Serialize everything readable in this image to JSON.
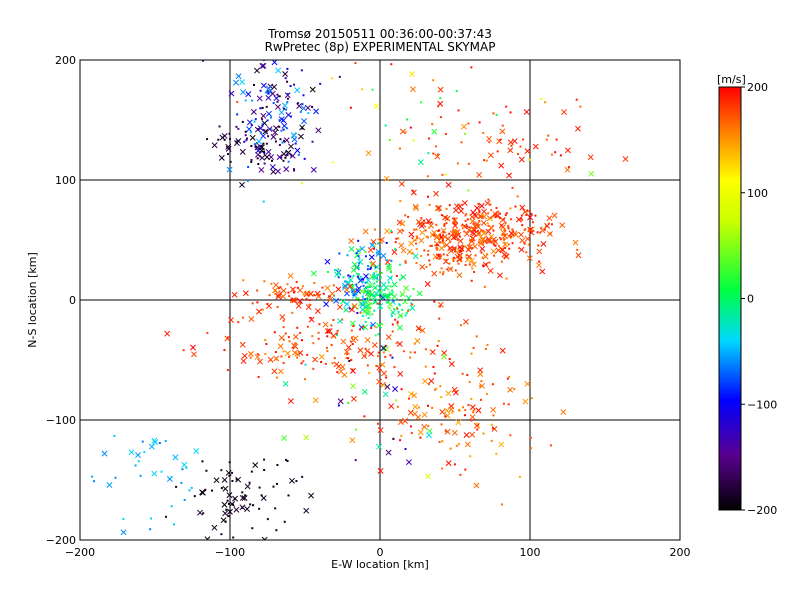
{
  "chart_data": {
    "type": "scatter",
    "title": "Tromsø 20150511 00:36:00-00:37:43",
    "subtitle": "RwPretec (8p) EXPERIMENTAL SKYMAP",
    "xlabel": "E-W location [km]",
    "ylabel": "N-S location [km]",
    "xlim": [
      -200,
      200
    ],
    "ylim": [
      -200,
      200
    ],
    "xticks": [
      -200,
      -100,
      0,
      100,
      200
    ],
    "yticks": [
      -200,
      -100,
      0,
      100,
      200
    ],
    "grid": true,
    "colorbar": {
      "label": "[m/s]",
      "range": [
        -200,
        200
      ],
      "ticks": [
        200,
        100,
        0,
        -100,
        -200
      ],
      "colormap": "rainbow-black-to-red"
    },
    "markers": {
      "cross": "meteor echo (large marker)",
      "dot": "meteor echo (small marker)"
    },
    "clusters": [
      {
        "x": -72,
        "y": 152,
        "sx": 14,
        "sy": 28,
        "n": 170,
        "vmin": -200,
        "vmax": -40
      },
      {
        "x": -88,
        "y": 133,
        "sx": 12,
        "sy": 10,
        "n": 45,
        "vmin": -200,
        "vmax": -160
      },
      {
        "x": 55,
        "y": 50,
        "sx": 28,
        "sy": 14,
        "n": 330,
        "vmin": 150,
        "vmax": 200
      },
      {
        "x": 80,
        "y": 66,
        "sx": 20,
        "sy": 9,
        "n": 90,
        "vmin": 165,
        "vmax": 200
      },
      {
        "x": -12,
        "y": 15,
        "sx": 10,
        "sy": 18,
        "n": 140,
        "vmin": -110,
        "vmax": 40
      },
      {
        "x": 2,
        "y": 3,
        "sx": 9,
        "sy": 14,
        "n": 110,
        "vmin": -30,
        "vmax": 40
      },
      {
        "x": -55,
        "y": 5,
        "sx": 20,
        "sy": 6,
        "n": 70,
        "vmin": 155,
        "vmax": 200
      },
      {
        "x": -40,
        "y": -38,
        "sx": 38,
        "sy": 16,
        "n": 150,
        "vmin": 150,
        "vmax": 200
      },
      {
        "x": 55,
        "y": -98,
        "sx": 24,
        "sy": 25,
        "n": 110,
        "vmin": 140,
        "vmax": 200
      },
      {
        "x": 75,
        "y": 125,
        "sx": 40,
        "sy": 22,
        "n": 70,
        "vmin": 160,
        "vmax": 200
      },
      {
        "x": -92,
        "y": -168,
        "sx": 20,
        "sy": 18,
        "n": 80,
        "vmin": -200,
        "vmax": -180
      },
      {
        "x": -150,
        "y": -150,
        "sx": 22,
        "sy": 28,
        "n": 40,
        "vmin": -70,
        "vmax": -30
      },
      {
        "x": 10,
        "y": -45,
        "sx": 30,
        "sy": 30,
        "n": 60,
        "vmin": 150,
        "vmax": 200
      },
      {
        "x": 25,
        "y": 140,
        "sx": 40,
        "sy": 35,
        "n": 45,
        "vmin": -20,
        "vmax": 200
      },
      {
        "x": 0,
        "y": -95,
        "sx": 30,
        "sy": 30,
        "n": 35,
        "vmin": -200,
        "vmax": 200
      }
    ]
  }
}
